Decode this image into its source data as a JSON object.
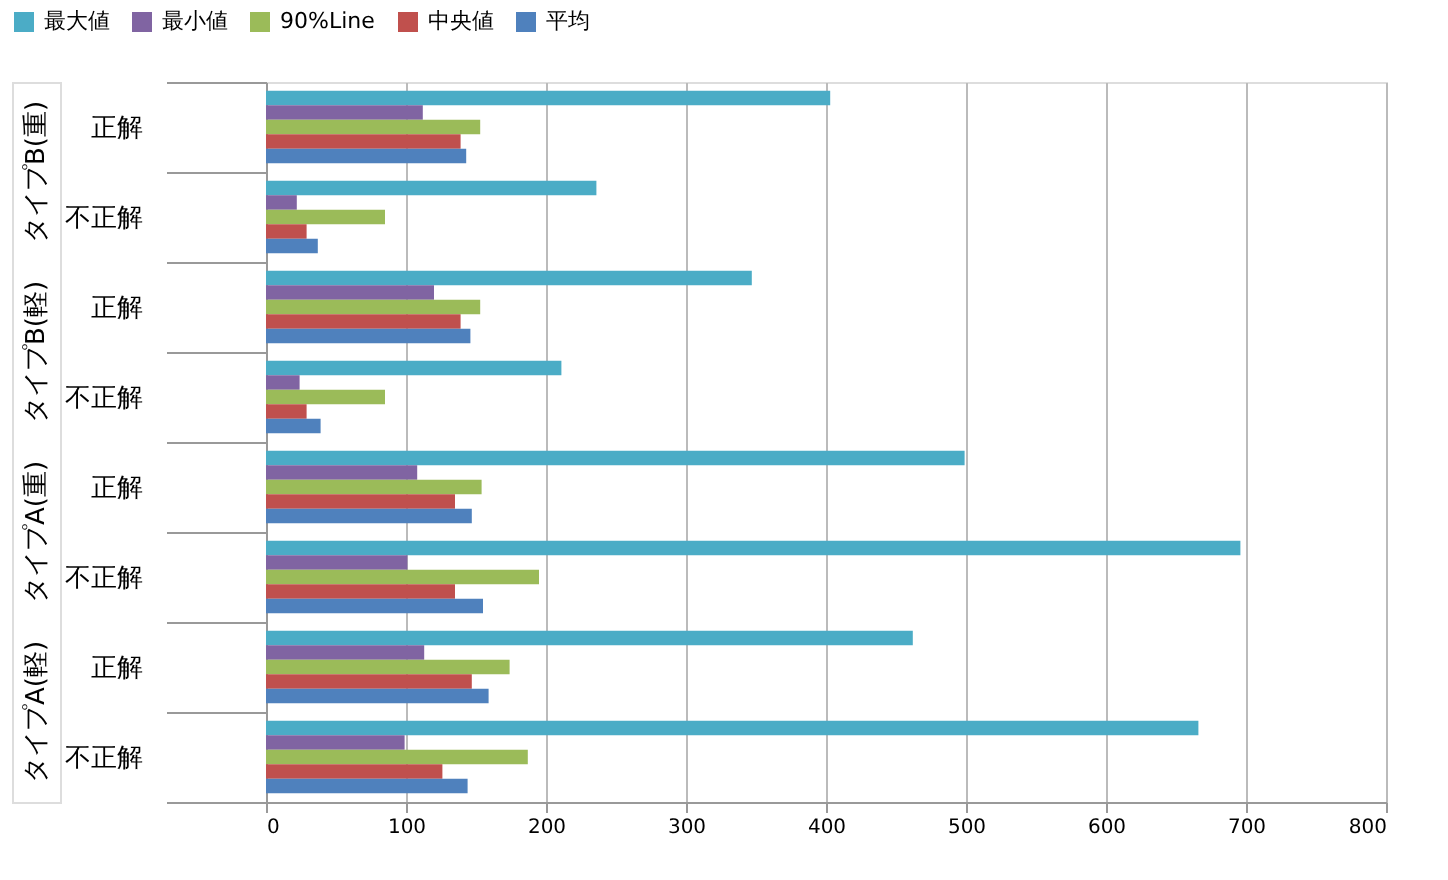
{
  "chart_data": {
    "type": "bar",
    "orientation": "horizontal",
    "categories": [
      "正解",
      "不正解",
      "正解",
      "不正解",
      "正解",
      "不正解",
      "正解",
      "不正解"
    ],
    "annotations": [
      "タイプB(重)",
      "タイプB(軽)",
      "タイプA(重)",
      "タイプA(軽)"
    ],
    "series": [
      {
        "name": "最大値",
        "color": "#4bacc6",
        "values": [
          403,
          236,
          347,
          211,
          499,
          696,
          462,
          666
        ]
      },
      {
        "name": "最小値",
        "color": "#8064a2",
        "values": [
          112,
          22,
          120,
          24,
          108,
          101,
          113,
          99
        ]
      },
      {
        "name": "90%Line",
        "color": "#9bbb59",
        "values": [
          153,
          85,
          153,
          85,
          154,
          195,
          174,
          187
        ]
      },
      {
        "name": "中央値",
        "color": "#c0504d",
        "values": [
          139,
          29,
          139,
          29,
          135,
          135,
          147,
          126
        ]
      },
      {
        "name": "平均",
        "color": "#4f81bd",
        "values": [
          143,
          37,
          146,
          39,
          147,
          155,
          159,
          144
        ]
      }
    ],
    "xlim": [
      0,
      800
    ],
    "xticks": [
      0,
      100,
      200,
      300,
      400,
      500,
      600,
      700,
      800
    ],
    "grid": "x",
    "legend": "top"
  }
}
